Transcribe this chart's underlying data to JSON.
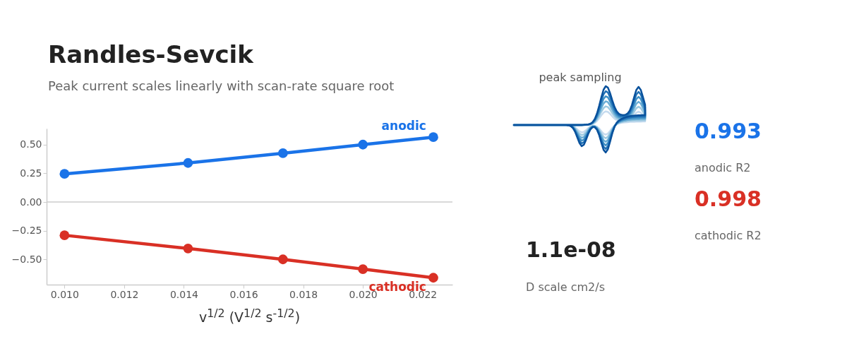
{
  "chart_data": [
    {
      "type": "line",
      "title": "Randles-Sevcik",
      "subtitle": "Peak current scales linearly with scan-rate square root",
      "xlabel": "v$^{1/2}$ (V$^{1/2}$ s$^{-1/2}$)",
      "x": [
        0.01,
        0.01414,
        0.01732,
        0.02,
        0.02236
      ],
      "series": [
        {
          "name": "anodic",
          "color": "#1a73e8",
          "values": [
            0.245,
            0.34,
            0.425,
            0.5,
            0.565
          ]
        },
        {
          "name": "cathodic",
          "color": "#d93025",
          "values": [
            -0.29,
            -0.405,
            -0.5,
            -0.585,
            -0.66
          ]
        }
      ],
      "xlim": [
        0.0094,
        0.023
      ],
      "xticks": [
        {
          "value": 0.01,
          "label": "0.010"
        },
        0.012,
        0.014,
        0.016,
        0.018,
        {
          "value": 0.02,
          "label": "0.020"
        },
        0.022
      ],
      "ylim": [
        -0.72,
        0.64
      ],
      "yticks": [
        {
          "value": -0.5,
          "label": "−0.50"
        },
        {
          "value": -0.25,
          "label": "−0.25"
        },
        {
          "value": 0,
          "label": "0.00"
        },
        0.25,
        {
          "value": 0.5,
          "label": "0.50"
        }
      ],
      "ref_lines": [
        {
          "axis": "y",
          "value": 0,
          "color": "#cccccc"
        }
      ],
      "marker": "circle",
      "line_style": "solid",
      "grid": false
    },
    {
      "type": "other",
      "annotations": [
        "peak sampling",
        "0.993",
        "anodic R2",
        "0.998",
        "cathodic R2",
        "1.1e-08",
        "D scale cm2/s"
      ]
    }
  ]
}
